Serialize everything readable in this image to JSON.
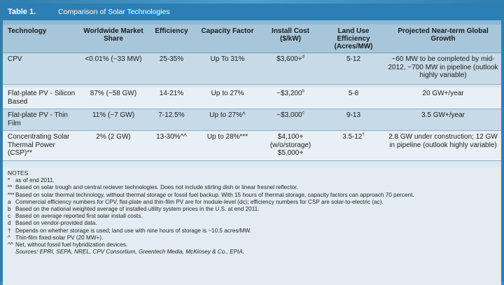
{
  "table": {
    "number": "Table 1.",
    "caption": "Comparison of Solar Technologies",
    "headers": [
      "Technology",
      "Worldwide Market Share",
      "Efficiency",
      "Capacity Factor",
      "Install Cost ($/kW)",
      "Land Use Efficiency (Acres/MW)",
      "Projected Near-term Global Growth"
    ],
    "rows": [
      {
        "technology": "CPV",
        "share": "<0.01% (~33 MW)",
        "efficiency": "25-35%",
        "capacity": "Up To 31%",
        "cost": "$3,600+",
        "cost_sup": "d",
        "land": "5-12",
        "land_sup": "",
        "growth": "~60 MW to be completed by mid-2012, ~700 MW in pipeline (outlook highly variable)"
      },
      {
        "technology": "Flat-plate PV - Silicon Based",
        "share": "87% (~58 GW)",
        "efficiency": "14-21%",
        "capacity": "Up to 27%",
        "cost": "~$3,200",
        "cost_sup": "b",
        "land": "5-8",
        "land_sup": "",
        "growth": "20 GW+/year"
      },
      {
        "technology": "Flat-plate PV - Thin Film",
        "share": "11% (~7 GW)",
        "efficiency": "7-12.5%",
        "capacity": "Up to 27%^",
        "cost": "~$3,000",
        "cost_sup": "c",
        "land": "9-13",
        "land_sup": "",
        "growth": "3.5 GW+/year"
      },
      {
        "technology": "Concentrating Solar Thermal Power (CSP)**",
        "share": "2% (2 GW)",
        "efficiency": "13-30%^^",
        "capacity": "Up to 28%***",
        "cost": "$4,100+ (w/o/storage) $5,000+",
        "cost_sup": "",
        "land": "3.5-12",
        "land_sup": "†",
        "growth": "2.8 GW under construction; 12 GW in pipeline (outlook highly variable)"
      }
    ]
  },
  "notes": {
    "heading": "NOTES",
    "items": [
      {
        "mark": "*",
        "text": "as of end 2011."
      },
      {
        "mark": "**",
        "text": "Based on solar trough and central reciever technologies. Does not include stirling dish or linear fresnel reflector."
      },
      {
        "mark": "***",
        "text": "Based on solar thermal technology, without thermal storage or fossil fuel backup. With 15 hours of thermal storage, capacity factors can approach 70 percent."
      },
      {
        "mark": "a",
        "text": "Commercial efficiency numbers for CPV, flat-plate and thin-film PV are for module-level (dc); efficiency numbers for CSP are solar-to-electric (ac)."
      },
      {
        "mark": "b",
        "text": "Based on the national weighted average of installed utility system prices in the U.S. at end 2011."
      },
      {
        "mark": "c",
        "text": "Based on average reported first solar install costs."
      },
      {
        "mark": "d",
        "text": "Based on vendor-provided data."
      },
      {
        "mark": "†",
        "text": "Depends on whether storage is used; land use with nine hours of storage is ~10.5 acres/MW."
      },
      {
        "mark": "^",
        "text": "Thin-film fixed-solar PV (20 MW+)."
      },
      {
        "mark": "^^",
        "text": "Net, without fossil fuel hybridization devices."
      }
    ],
    "sources": "Sources: EPRI, SEPA, NREL, CPV Consortium, Greentech Media, McKinsey & Co., EPIA."
  },
  "colors": {
    "background": "#3a8bb8",
    "title_bar": "#2c7fb5",
    "header_row": "#a8c6da",
    "row_shaded": "#c7dae7",
    "row_plain": "#e9f0f5"
  }
}
